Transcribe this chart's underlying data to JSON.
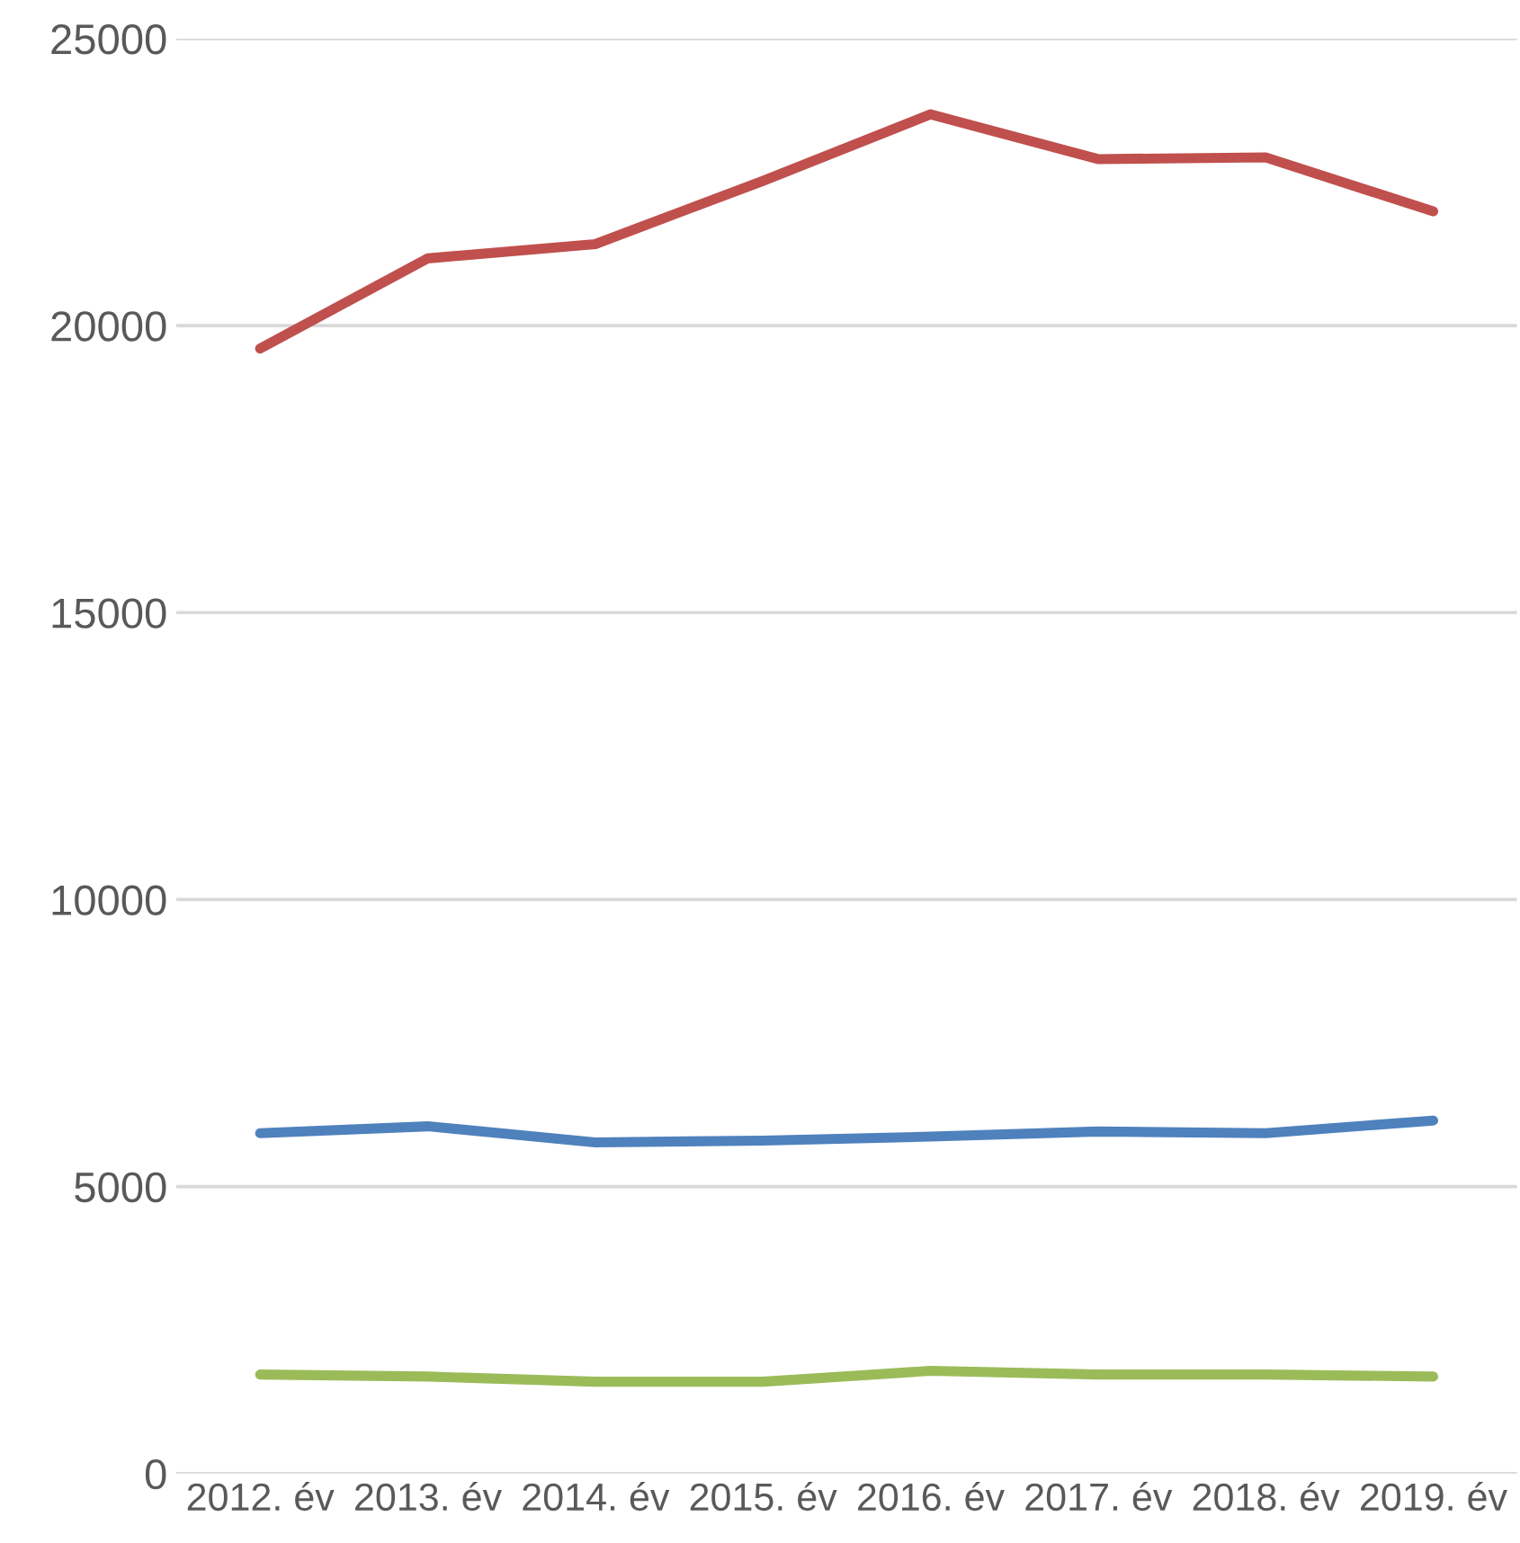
{
  "chart_data": {
    "type": "line",
    "categories": [
      "2012. év",
      "2013. év",
      "2014. év",
      "2015. év",
      "2016. év",
      "2017. év",
      "2018. év",
      "2019. év"
    ],
    "series": [
      {
        "color": "#c0504d",
        "values": [
          19600,
          21170,
          21420,
          22520,
          23680,
          22900,
          22930,
          21990
        ]
      },
      {
        "color": "#4f81bd",
        "values": [
          5930,
          6050,
          5770,
          5800,
          5870,
          5960,
          5930,
          6150
        ]
      },
      {
        "color": "#9bbb59",
        "values": [
          1725,
          1690,
          1600,
          1600,
          1790,
          1725,
          1725,
          1690
        ]
      }
    ],
    "ylim": [
      0,
      25000
    ],
    "yticks": [
      0,
      5000,
      10000,
      15000,
      20000,
      25000
    ],
    "grid": "y",
    "legend": false,
    "marker": "none",
    "line_style": "solid"
  }
}
